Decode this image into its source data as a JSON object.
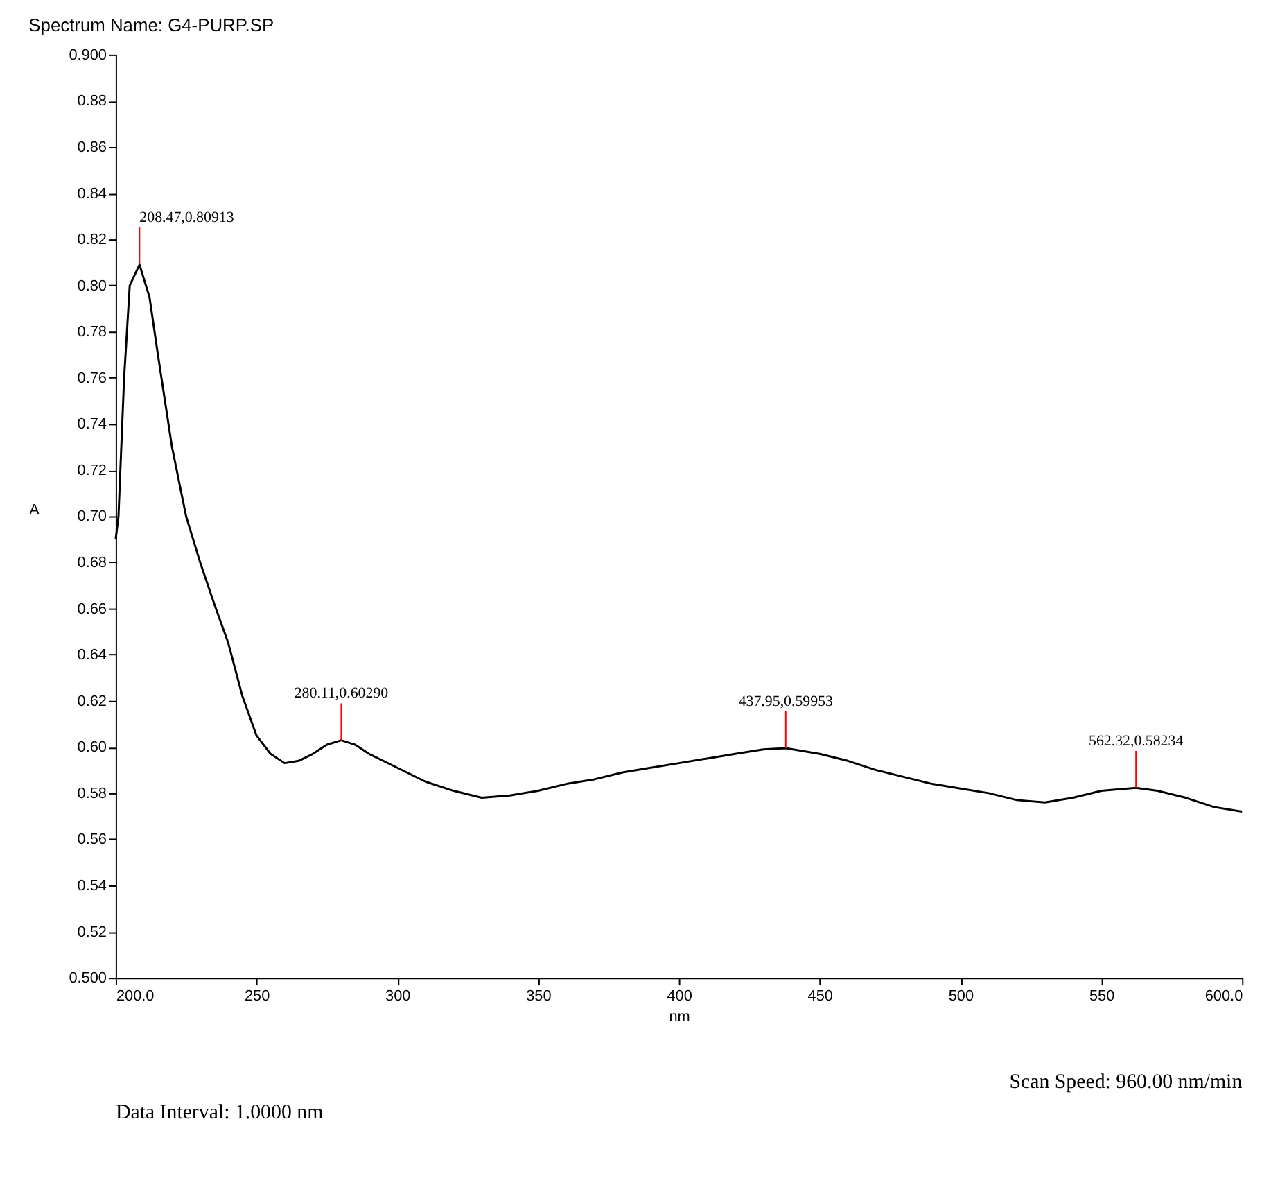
{
  "chart_data": {
    "type": "line",
    "title": "Spectrum Name: G4-PURP.SP",
    "xlabel": "nm",
    "ylabel": "A",
    "x": [
      200,
      201,
      203,
      205,
      208.47,
      212,
      215,
      220,
      225,
      230,
      235,
      240,
      245,
      250,
      255,
      260,
      265,
      270,
      275,
      280.11,
      285,
      290,
      300,
      310,
      320,
      330,
      340,
      350,
      360,
      370,
      380,
      390,
      400,
      410,
      420,
      430,
      437.95,
      450,
      460,
      470,
      480,
      490,
      500,
      510,
      520,
      530,
      540,
      550,
      562.32,
      570,
      580,
      590,
      600
    ],
    "series": [
      {
        "color": "#000000",
        "values": [
          0.69,
          0.7,
          0.76,
          0.8,
          0.809,
          0.795,
          0.77,
          0.73,
          0.7,
          0.68,
          0.662,
          0.645,
          0.622,
          0.605,
          0.597,
          0.593,
          0.594,
          0.597,
          0.601,
          0.6029,
          0.601,
          0.597,
          0.591,
          0.585,
          0.581,
          0.578,
          0.579,
          0.581,
          0.584,
          0.586,
          0.589,
          0.591,
          0.593,
          0.595,
          0.597,
          0.599,
          0.5995,
          0.597,
          0.594,
          0.59,
          0.587,
          0.584,
          0.582,
          0.58,
          0.577,
          0.576,
          0.578,
          0.581,
          0.5823,
          0.581,
          0.578,
          0.574,
          0.572
        ]
      }
    ],
    "xlim": [
      200,
      600
    ],
    "xticks": [
      {
        "value": 200,
        "label": "200.0"
      },
      250,
      300,
      350,
      400,
      450,
      500,
      550,
      {
        "value": 600,
        "label": "600.0"
      }
    ],
    "ylim": [
      0.5,
      0.9
    ],
    "yticks": [
      {
        "value": 0.5,
        "label": "0.500"
      },
      {
        "value": 0.52,
        "label": "0.52"
      },
      {
        "value": 0.54,
        "label": "0.54"
      },
      {
        "value": 0.56,
        "label": "0.56"
      },
      {
        "value": 0.58,
        "label": "0.58"
      },
      {
        "value": 0.6,
        "label": "0.60"
      },
      {
        "value": 0.62,
        "label": "0.62"
      },
      {
        "value": 0.64,
        "label": "0.64"
      },
      {
        "value": 0.66,
        "label": "0.66"
      },
      {
        "value": 0.68,
        "label": "0.68"
      },
      {
        "value": 0.7,
        "label": "0.70"
      },
      {
        "value": 0.72,
        "label": "0.72"
      },
      {
        "value": 0.74,
        "label": "0.74"
      },
      {
        "value": 0.76,
        "label": "0.76"
      },
      {
        "value": 0.78,
        "label": "0.78"
      },
      {
        "value": 0.8,
        "label": "0.80"
      },
      {
        "value": 0.82,
        "label": "0.82"
      },
      {
        "value": 0.84,
        "label": "0.84"
      },
      {
        "value": 0.86,
        "label": "0.86"
      },
      {
        "value": 0.88,
        "label": "0.88"
      },
      {
        "value": 0.9,
        "label": "0.900"
      }
    ],
    "grid": false,
    "legend": false,
    "marker": "none",
    "line_style": "solid",
    "annotations": [
      {
        "text": "208.47,0.80913",
        "x": 208.47,
        "y": 0.80913
      },
      {
        "text": "280.11,0.60290",
        "x": 280.11,
        "y": 0.6029
      },
      {
        "text": "437.95,0.59953",
        "x": 437.95,
        "y": 0.59953
      },
      {
        "text": "562.32,0.58234",
        "x": 562.32,
        "y": 0.58234
      },
      "Scan Speed: 960.00 nm/min",
      "Data Interval: 1.0000 nm"
    ]
  }
}
